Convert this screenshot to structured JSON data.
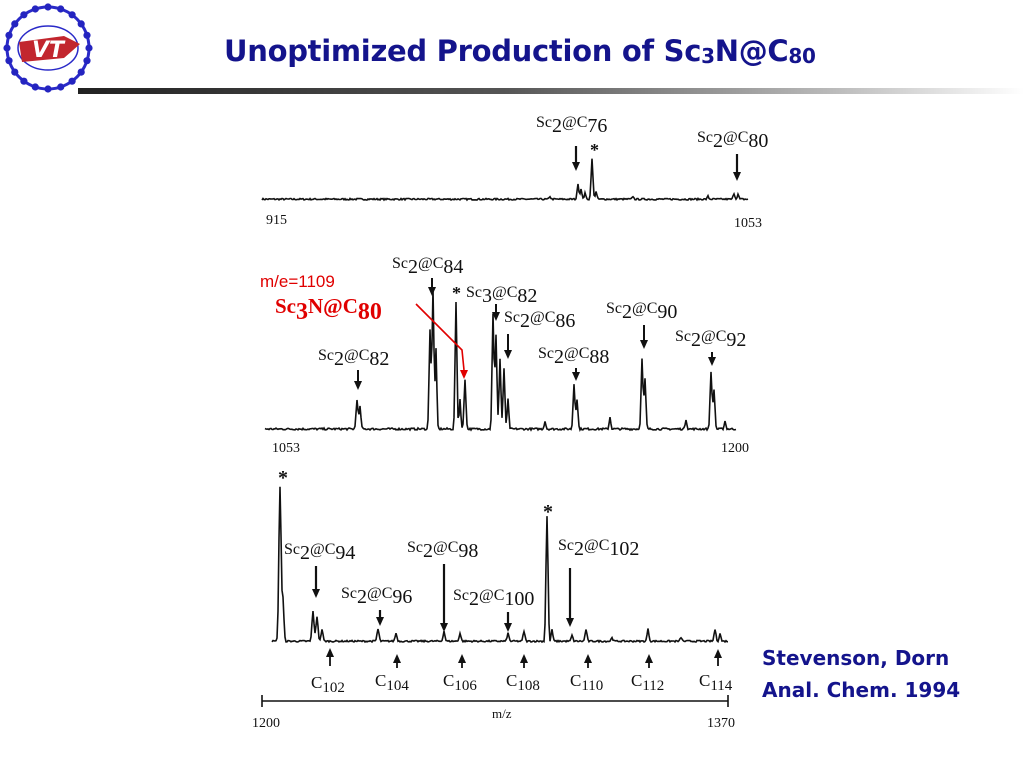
{
  "slide": {
    "title_main": "Unoptimized Production of Sc",
    "title_sub1": "3",
    "title_mid": "N@C",
    "title_sub2": "80",
    "logo_text": "VT",
    "citation_line1": "Stevenson, Dorn",
    "citation_line2": "Anal. Chem. 1994"
  },
  "annotation": {
    "mass_label": "m/e=1109",
    "species_main": "Sc",
    "species_sub1": "3",
    "species_mid": "N@C",
    "species_sub2": "80"
  },
  "panels": [
    {
      "axis_start": "915",
      "axis_end": "1053",
      "labels": [
        {
          "main": "Sc",
          "sub1": "2",
          "mid": "@C",
          "sub2": "76"
        },
        {
          "main": "Sc",
          "sub1": "2",
          "mid": "@C",
          "sub2": "80"
        }
      ],
      "star": "*"
    },
    {
      "axis_start": "1053",
      "axis_end": "1200",
      "labels": [
        {
          "main": "Sc",
          "sub1": "2",
          "mid": "@C",
          "sub2": "82"
        },
        {
          "main": "Sc",
          "sub1": "2",
          "mid": "@C",
          "sub2": "84"
        },
        {
          "main": "Sc",
          "sub1": "3",
          "mid": "@C",
          "sub2": "82"
        },
        {
          "main": "Sc",
          "sub1": "2",
          "mid": "@C",
          "sub2": "86"
        },
        {
          "main": "Sc",
          "sub1": "2",
          "mid": "@C",
          "sub2": "88"
        },
        {
          "main": "Sc",
          "sub1": "2",
          "mid": "@C",
          "sub2": "90"
        },
        {
          "main": "Sc",
          "sub1": "2",
          "mid": "@C",
          "sub2": "92"
        }
      ],
      "star": "*"
    },
    {
      "axis_start": "1200",
      "axis_end": "1370",
      "axis_label": "m/z",
      "labels": [
        {
          "main": "Sc",
          "sub1": "2",
          "mid": "@C",
          "sub2": "94"
        },
        {
          "main": "Sc",
          "sub1": "2",
          "mid": "@C",
          "sub2": "96"
        },
        {
          "main": "Sc",
          "sub1": "2",
          "mid": "@C",
          "sub2": "98"
        },
        {
          "main": "Sc",
          "sub1": "2",
          "mid": "@C",
          "sub2": "100"
        },
        {
          "main": "Sc",
          "sub1": "2",
          "mid": "@C",
          "sub2": "102"
        }
      ],
      "carbon_labels": [
        {
          "main": "C",
          "sub": "102"
        },
        {
          "main": "C",
          "sub": "104"
        },
        {
          "main": "C",
          "sub": "106"
        },
        {
          "main": "C",
          "sub": "108"
        },
        {
          "main": "C",
          "sub": "110"
        },
        {
          "main": "C",
          "sub": "112"
        },
        {
          "main": "C",
          "sub": "114"
        }
      ],
      "star_left": "*",
      "star_mid": "*"
    }
  ],
  "colors": {
    "title": "#14148c",
    "annotation": "#e00000",
    "ink": "#111111"
  }
}
